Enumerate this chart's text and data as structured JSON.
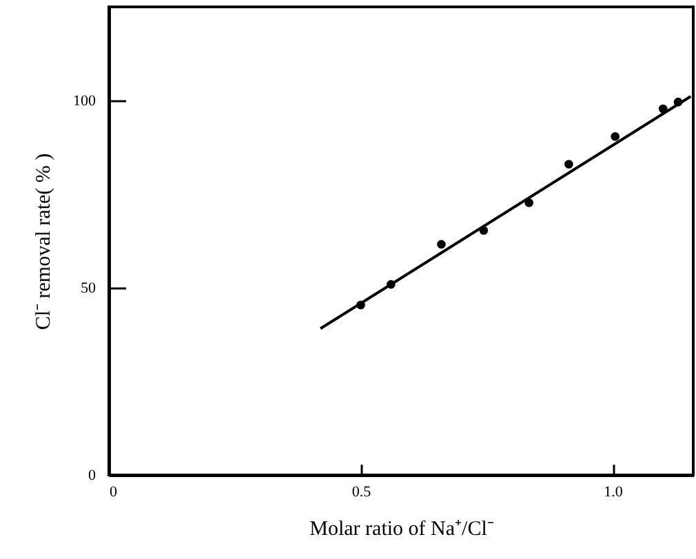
{
  "chart_data": {
    "type": "scatter",
    "xlabel": "Molar ratio of Na⁺/Cl⁻",
    "ylabel": "Cl⁻ removal rate( % )",
    "xlim": [
      0,
      1.16
    ],
    "ylim": [
      0,
      125
    ],
    "xticks": [
      0,
      0.5,
      {
        "value": 1,
        "label": "1.0"
      }
    ],
    "yticks": [
      0,
      50,
      100
    ],
    "grid": false,
    "series": [
      {
        "color": "#000000",
        "marker": "circle",
        "x": [
          0.5,
          0.56,
          0.66,
          0.744,
          0.834,
          0.913,
          1.005,
          1.1,
          1.13
        ],
        "values": [
          45.4,
          50.9,
          61.6,
          65.3,
          72.7,
          83.0,
          90.4,
          97.8,
          99.6
        ]
      },
      {
        "type": "line",
        "color": "#000000",
        "marker": "none",
        "x": [
          0.42,
          1.155
        ],
        "values": [
          39.1,
          101.1
        ]
      }
    ]
  }
}
